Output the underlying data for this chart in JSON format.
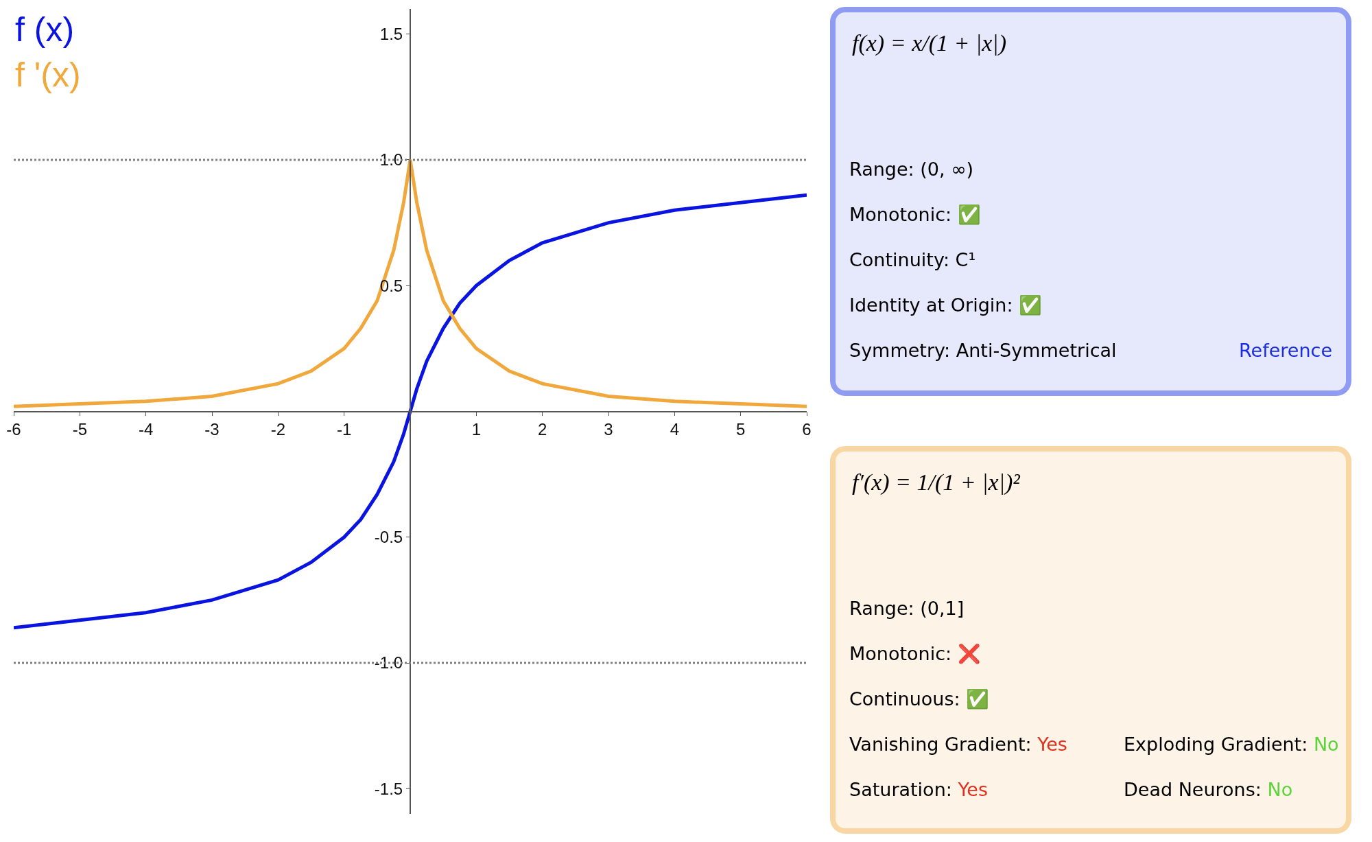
{
  "chart_data": [
    {
      "type": "line",
      "x": [
        -6,
        -5,
        -4,
        -3,
        -2,
        -1.5,
        -1,
        -0.75,
        -0.5,
        -0.25,
        -0.1,
        0,
        0.1,
        0.25,
        0.5,
        0.75,
        1,
        1.5,
        2,
        3,
        4,
        5,
        6
      ],
      "series": [
        {
          "name": "f (x)",
          "color": "#0a14e0",
          "values": [
            -0.86,
            -0.83,
            -0.8,
            -0.75,
            -0.67,
            -0.6,
            -0.5,
            -0.43,
            -0.33,
            -0.2,
            -0.09,
            0,
            0.09,
            0.2,
            0.33,
            0.43,
            0.5,
            0.6,
            0.67,
            0.75,
            0.8,
            0.83,
            0.86
          ]
        },
        {
          "name": "f '(x)",
          "color": "#f0a83c",
          "values": [
            0.02,
            0.03,
            0.04,
            0.06,
            0.11,
            0.16,
            0.25,
            0.33,
            0.44,
            0.64,
            0.83,
            1,
            0.83,
            0.64,
            0.44,
            0.33,
            0.25,
            0.16,
            0.11,
            0.06,
            0.04,
            0.03,
            0.02
          ]
        }
      ],
      "xlim": [
        -6,
        6
      ],
      "ylim": [
        -1.6,
        1.6
      ],
      "xticks": [
        -6,
        -5,
        -4,
        -3,
        -2,
        -1,
        1,
        2,
        3,
        4,
        5,
        6
      ],
      "yticks": [
        {
          "value": -1.5,
          "label": "-1.5"
        },
        {
          "value": -1,
          "label": "-1.0"
        },
        {
          "value": -0.5,
          "label": "-0.5"
        },
        {
          "value": 0.5,
          "label": "0.5"
        },
        {
          "value": 1,
          "label": "1.0"
        },
        {
          "value": 1.5,
          "label": "1.5"
        }
      ],
      "ref_lines": [
        {
          "axis": "y",
          "value": 1,
          "color": "#808080",
          "line_style": "dotted"
        },
        {
          "axis": "y",
          "value": -1,
          "color": "#808080",
          "line_style": "dotted"
        }
      ],
      "legend": "top left",
      "grid": false,
      "marker": "none",
      "line_style": "solid"
    },
    {
      "type": "other",
      "title": "f(x) = x/(1 + |x|)",
      "annotations": [
        "Range: (0, ∞)",
        "Monotonic: ✅",
        "Continuity: C¹",
        "Identity at Origin: ✅",
        "Symmetry: Anti-Symmetrical",
        "Reference"
      ],
      "colors": [
        null,
        "#3cb043",
        null,
        "#3cb043",
        null,
        "#1a2de0"
      ]
    },
    {
      "type": "other",
      "title": "f′(x) = 1/(1 + |x|)²",
      "annotations": [
        "Range: (0,1]",
        "Monotonic: ❌",
        "Continuous: ✅",
        "Vanishing Gradient: Yes",
        "Exploding Gradient: No",
        "Saturation: Yes",
        "Dead Neurons: No"
      ],
      "colors": [
        null,
        "#e0301e",
        "#3cb043",
        "#e0301e",
        "#5ad43a",
        "#e0301e",
        "#5ad43a"
      ]
    }
  ]
}
